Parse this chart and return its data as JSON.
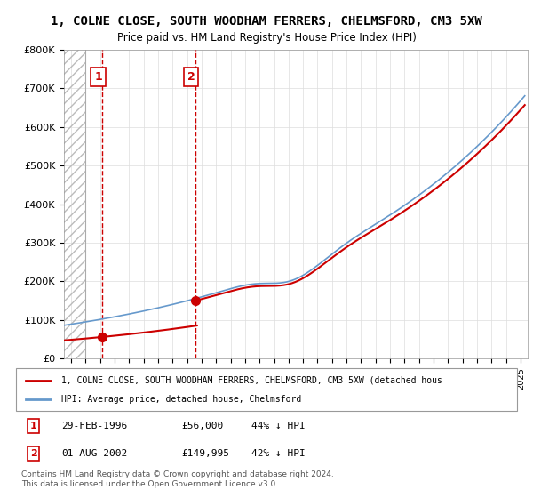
{
  "title_line1": "1, COLNE CLOSE, SOUTH WOODHAM FERRERS, CHELMSFORD, CM3 5XW",
  "title_line2": "Price paid vs. HM Land Registry's House Price Index (HPI)",
  "xlabel": "",
  "ylabel": "",
  "ylim": [
    0,
    800000
  ],
  "yticks": [
    0,
    100000,
    200000,
    300000,
    400000,
    500000,
    600000,
    700000,
    800000
  ],
  "ytick_labels": [
    "£0",
    "£100K",
    "£200K",
    "£300K",
    "£400K",
    "£500K",
    "£600K",
    "£700K",
    "£800K"
  ],
  "hpi_color": "#6699cc",
  "price_color": "#cc0000",
  "hatch_color": "#cccccc",
  "sale1": {
    "date_num": 1996.16,
    "price": 56000,
    "label": "1"
  },
  "sale2": {
    "date_num": 2002.58,
    "price": 149995,
    "label": "2"
  },
  "legend_label1": "1, COLNE CLOSE, SOUTH WOODHAM FERRERS, CHELMSFORD, CM3 5XW (detached hous",
  "legend_label2": "HPI: Average price, detached house, Chelmsford",
  "footer_text": "Contains HM Land Registry data © Crown copyright and database right 2024.\nThis data is licensed under the Open Government Licence v3.0.",
  "table_rows": [
    {
      "label": "1",
      "date": "29-FEB-1996",
      "price": "£56,000",
      "hpi": "44% ↓ HPI"
    },
    {
      "label": "2",
      "date": "01-AUG-2002",
      "price": "£149,995",
      "hpi": "42% ↓ HPI"
    }
  ],
  "xmin": 1993.5,
  "xmax": 2025.5
}
